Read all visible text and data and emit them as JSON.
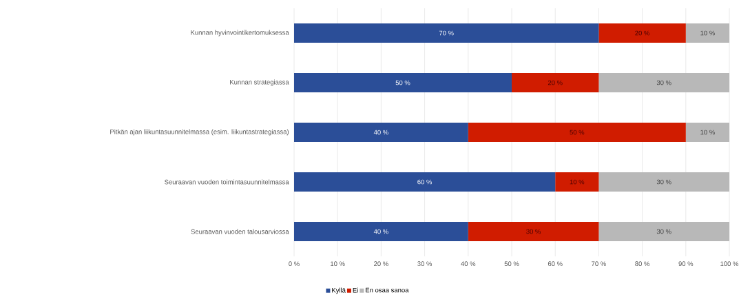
{
  "chart_data": {
    "type": "bar",
    "orientation": "horizontal",
    "stacked": true,
    "categories": [
      "Kunnan hyvinvointikertomuksessa",
      "Kunnan strategiassa",
      "Pitkän ajan liikuntasuunnitelmassa (esim. liikuntastrategiassa)",
      "Seuraavan vuoden toimintasuunnitelmassa",
      "Seuraavan vuoden talousarviossa"
    ],
    "series": [
      {
        "name": "Kyllä",
        "color": "#2b4e98",
        "values": [
          70,
          50,
          40,
          60,
          40
        ],
        "value_labels": [
          "70 %",
          "50 %",
          "40 %",
          "60 %",
          "40 %"
        ]
      },
      {
        "name": "Ei",
        "color": "#d01c00",
        "values": [
          20,
          20,
          50,
          10,
          30
        ],
        "value_labels": [
          "20 %",
          "20 %",
          "50 %",
          "10 %",
          "30 %"
        ]
      },
      {
        "name": "En osaa sanoa",
        "color": "#b8b8b8",
        "values": [
          10,
          30,
          10,
          30,
          30
        ],
        "value_labels": [
          "10 %",
          "30 %",
          "10 %",
          "30 %",
          "30 %"
        ]
      }
    ],
    "xlim": [
      0,
      100
    ],
    "xticks": [
      {
        "value": 0,
        "label": "0 %"
      },
      {
        "value": 10,
        "label": "10 %"
      },
      {
        "value": 20,
        "label": "20 %"
      },
      {
        "value": 30,
        "label": "30 %"
      },
      {
        "value": 40,
        "label": "40 %"
      },
      {
        "value": 50,
        "label": "50 %"
      },
      {
        "value": 60,
        "label": "60 %"
      },
      {
        "value": 70,
        "label": "70 %"
      },
      {
        "value": 80,
        "label": "80 %"
      },
      {
        "value": 90,
        "label": "90 %"
      },
      {
        "value": 100,
        "label": "100 %"
      }
    ],
    "grid": "x",
    "legend": "bottom"
  }
}
